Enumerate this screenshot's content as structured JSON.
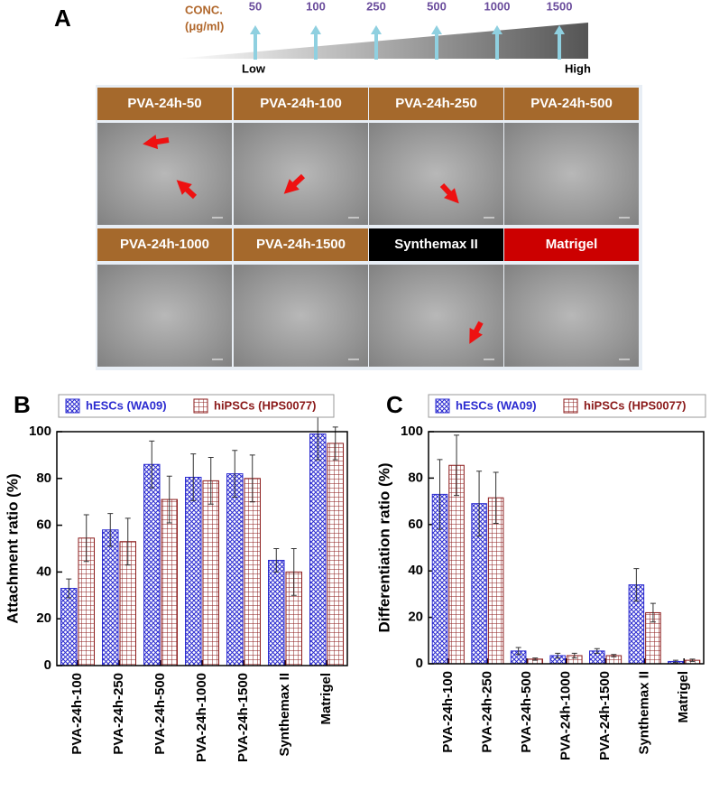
{
  "panel_a": {
    "label": "A",
    "conc_label": "CONC.",
    "unit": "(μg/ml)",
    "concentrations": [
      50,
      100,
      250,
      500,
      1000,
      1500
    ],
    "low": "Low",
    "high": "High",
    "tiles": [
      "PVA-24h-50",
      "PVA-24h-100",
      "PVA-24h-250",
      "PVA-24h-500",
      "PVA-24h-1000",
      "PVA-24h-1500",
      "Synthemax II",
      "Matrigel"
    ]
  },
  "chart_data": [
    {
      "type": "bar",
      "panel_label": "B",
      "ylabel": "Attachment ratio (%)",
      "categories": [
        "PVA-24h-100",
        "PVA-24h-250",
        "PVA-24h-500",
        "PVA-24h-1000",
        "PVA-24h-1500",
        "Synthemax II",
        "Matrigel"
      ],
      "series": [
        {
          "name": "hESCs (WA09)",
          "color": "#2b2bd0",
          "hatch": "cross",
          "values": [
            33,
            58,
            86,
            80.5,
            82,
            45,
            99
          ],
          "errors": [
            4,
            7,
            10,
            10,
            10,
            5,
            11
          ]
        },
        {
          "name": "hiPSCs (HPS0077)",
          "color": "#8b1a1a",
          "hatch": "grid",
          "values": [
            54.5,
            53,
            71,
            79,
            80,
            40,
            95
          ],
          "errors": [
            10,
            10,
            10,
            10,
            10,
            10,
            7
          ]
        }
      ],
      "ylim": [
        0,
        100
      ],
      "yticks": [
        0,
        20,
        40,
        60,
        80,
        100
      ],
      "legend": "top"
    },
    {
      "type": "bar",
      "panel_label": "C",
      "ylabel": "Differentiation ratio (%)",
      "categories": [
        "PVA-24h-100",
        "PVA-24h-250",
        "PVA-24h-500",
        "PVA-24h-1000",
        "PVA-24h-1500",
        "Synthemax II",
        "Matrigel"
      ],
      "series": [
        {
          "name": "hESCs (WA09)",
          "color": "#2b2bd0",
          "hatch": "cross",
          "values": [
            73,
            69,
            5.5,
            3.5,
            5.5,
            34,
            1
          ],
          "errors": [
            15,
            14,
            1.5,
            1,
            1,
            7,
            0.5
          ]
        },
        {
          "name": "hiPSCs (HPS0077)",
          "color": "#8b1a1a",
          "hatch": "grid",
          "values": [
            85.5,
            71.5,
            2,
            3.5,
            3.5,
            22,
            1.5
          ],
          "errors": [
            13,
            11,
            0.5,
            1,
            0.5,
            4,
            0.5
          ]
        }
      ],
      "ylim": [
        0,
        100
      ],
      "yticks": [
        0,
        20,
        40,
        60,
        80,
        100
      ],
      "legend": "top"
    }
  ]
}
